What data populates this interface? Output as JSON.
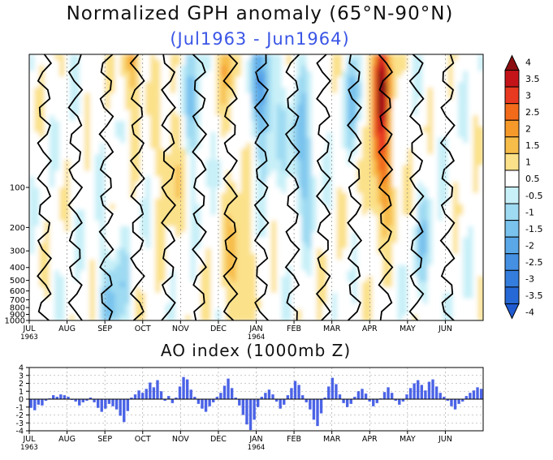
{
  "chart_data": [
    {
      "type": "heatmap",
      "title": "Normalized GPH anomaly (65°N-90°N)",
      "subtitle": "(Jul1963 - Jun1964)",
      "x_tick_labels": [
        "JUL\n1963",
        "AUG",
        "SEP",
        "OCT",
        "NOV",
        "DEC",
        "JAN\n1964",
        "FEB",
        "MAR",
        "APR",
        "MAY",
        "JUN"
      ],
      "y_tick_labels": [
        "100",
        "200",
        "300",
        "400",
        "500",
        "600",
        "700",
        "800",
        "900",
        "1000"
      ],
      "y_scale": "log-pressure",
      "colorbar": {
        "labels": [
          "4",
          "3.5",
          "3",
          "2.5",
          "2",
          "1.5",
          "1",
          "0.5",
          "-0.5",
          "-1",
          "-1.5",
          "-2",
          "-2.5",
          "-3",
          "-3.5",
          "-4"
        ],
        "colors": [
          "#8b0f12",
          "#c4141a",
          "#e83a20",
          "#f26b1a",
          "#f59a2a",
          "#f7bd4a",
          "#fbe18a",
          "#ffffff",
          "#c8f0f8",
          "#9edaf2",
          "#79c3ee",
          "#5aa8e8",
          "#4590e2",
          "#347ddc",
          "#2669d6",
          "#1f5ad0"
        ]
      },
      "anomaly_blobs": [
        {
          "month": 2.75,
          "level": 10,
          "value": 2.0
        },
        {
          "month": 3.75,
          "level": 60,
          "value": 1.5
        },
        {
          "month": 4.4,
          "level": 30,
          "value": -1.5
        },
        {
          "month": 5.5,
          "level": 400,
          "value": 2.0
        },
        {
          "month": 5.3,
          "level": 15,
          "value": 1.5
        },
        {
          "month": 6.2,
          "level": 20,
          "value": -2.5
        },
        {
          "month": 7.2,
          "level": 60,
          "value": -2.0
        },
        {
          "month": 8.7,
          "level": 20,
          "value": -1.5
        },
        {
          "month": 9.25,
          "level": 15,
          "value": 3.5
        },
        {
          "month": 9.3,
          "level": 80,
          "value": 2.5
        },
        {
          "month": 2.2,
          "level": 600,
          "value": -1.5
        },
        {
          "month": 10.5,
          "level": 300,
          "value": -1.0
        }
      ]
    },
    {
      "type": "bar",
      "title": "AO index (1000mb Z)",
      "x_tick_labels": [
        "JUL\n1963",
        "AUG",
        "SEP",
        "OCT",
        "NOV",
        "DEC",
        "JAN\n1964",
        "FEB",
        "MAR",
        "APR",
        "MAY",
        "JUN"
      ],
      "y_ticks": [
        4,
        3,
        2,
        1,
        0,
        -1,
        -2,
        -3,
        -4
      ],
      "ylim": [
        -4,
        4
      ],
      "bar_color": "#4b63e6",
      "values": [
        -1.1,
        -1.4,
        -0.7,
        -0.8,
        -0.2,
        0.1,
        0.5,
        0.3,
        0.6,
        0.5,
        0.3,
        -0.1,
        -0.3,
        -0.8,
        -0.4,
        -0.2,
        0.2,
        -0.4,
        -1.1,
        -1.6,
        -1.2,
        -0.6,
        -0.9,
        -1.3,
        -2.1,
        -2.9,
        -1.5,
        0.2,
        0.6,
        1.1,
        0.8,
        1.3,
        2.1,
        1.5,
        2.4,
        1.0,
        -0.2,
        0.4,
        -0.5,
        0.2,
        1.6,
        2.8,
        2.5,
        1.2,
        0.3,
        -0.6,
        -1.2,
        -1.6,
        -0.9,
        -0.4,
        0.3,
        0.8,
        1.7,
        2.6,
        1.4,
        0.2,
        -0.8,
        -2.0,
        -3.2,
        -3.9,
        -2.6,
        -1.0,
        0.3,
        0.8,
        1.2,
        0.6,
        -0.3,
        -1.2,
        -0.7,
        0.5,
        1.4,
        2.3,
        1.8,
        0.5,
        -0.4,
        -1.3,
        -2.6,
        -3.4,
        -1.8,
        0.2,
        1.6,
        2.7,
        1.9,
        0.6,
        -0.5,
        -1.0,
        -0.6,
        0.3,
        1.0,
        1.3,
        0.7,
        -0.3,
        -0.9,
        -0.5,
        0.1,
        0.9,
        1.5,
        0.8,
        -0.2,
        -0.7,
        -0.3,
        0.6,
        1.4,
        2.0,
        2.4,
        1.8,
        1.1,
        2.2,
        2.5,
        1.6,
        0.8,
        0.3,
        -0.2,
        -0.9,
        -1.3,
        -0.6,
        -0.3,
        0.4,
        0.8,
        1.1,
        1.5,
        1.3
      ]
    }
  ],
  "ao_title": "AO index (1000mb Z)"
}
